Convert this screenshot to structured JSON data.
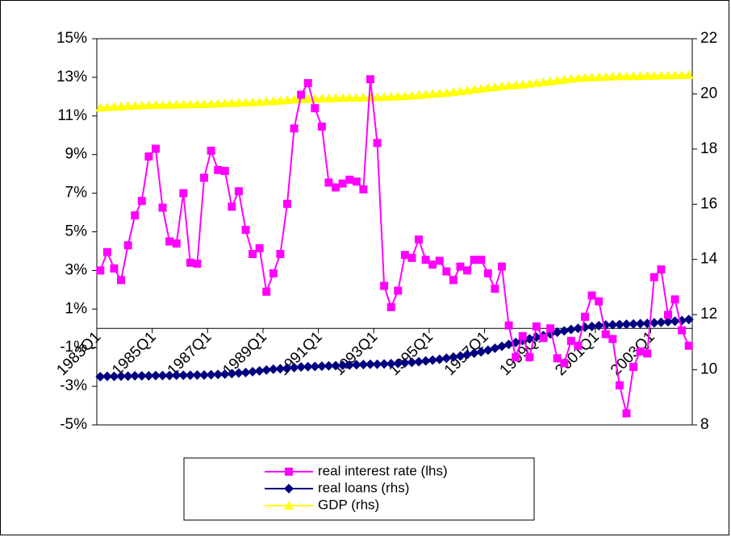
{
  "chart_data": {
    "type": "line",
    "categories": [
      "1983Q1",
      null,
      null,
      null,
      null,
      null,
      null,
      null,
      "1985Q1",
      null,
      null,
      null,
      null,
      null,
      null,
      null,
      "1987Q1",
      null,
      null,
      null,
      null,
      null,
      null,
      null,
      "1989Q1",
      null,
      null,
      null,
      null,
      null,
      null,
      null,
      "1991Q1",
      null,
      null,
      null,
      null,
      null,
      null,
      null,
      "1993Q1",
      null,
      null,
      null,
      null,
      null,
      null,
      null,
      "1995Q1",
      null,
      null,
      null,
      null,
      null,
      null,
      null,
      "1997Q1",
      null,
      null,
      null,
      null,
      null,
      null,
      null,
      "1999Q1",
      null,
      null,
      null,
      null,
      null,
      null,
      null,
      "2001Q1",
      null,
      null,
      null,
      null,
      null,
      null,
      null,
      "2003Q1",
      null,
      null,
      null,
      null,
      null
    ],
    "series": [
      {
        "name": "real interest rate (lhs)",
        "color": "#ff00ff",
        "marker": "square",
        "values": [
          3.0,
          3.95,
          3.1,
          2.5,
          4.3,
          5.85,
          6.6,
          8.9,
          9.3,
          6.25,
          4.5,
          4.4,
          7.0,
          3.4,
          3.35,
          7.8,
          9.2,
          8.2,
          8.15,
          6.3,
          7.1,
          5.1,
          3.85,
          4.15,
          1.9,
          2.85,
          3.85,
          6.45,
          10.35,
          12.1,
          12.7,
          11.4,
          10.45,
          7.55,
          7.3,
          7.5,
          7.7,
          7.6,
          7.2,
          12.9,
          9.6,
          2.2,
          1.1,
          1.95,
          3.8,
          3.65,
          4.6,
          3.55,
          3.3,
          3.5,
          2.95,
          2.5,
          3.2,
          3.0,
          3.55,
          3.55,
          2.85,
          2.05,
          3.2,
          0.15,
          -1.5,
          -0.4,
          -1.5,
          0.1,
          -0.5,
          0.0,
          -1.55,
          -1.8,
          -0.65,
          -0.9,
          0.6,
          1.7,
          1.4,
          -0.3,
          -0.55,
          -2.95,
          -4.4,
          -2.0,
          -1.2,
          -1.3,
          2.65,
          3.05,
          0.7,
          1.5,
          -0.1,
          -0.9
        ]
      },
      {
        "name": "real loans (rhs)",
        "color": "#000080",
        "marker": "diamond",
        "axis": "y2",
        "values": [
          9.75,
          9.76,
          9.76,
          9.77,
          9.77,
          9.78,
          9.78,
          9.78,
          9.79,
          9.79,
          9.79,
          9.8,
          9.8,
          9.8,
          9.81,
          9.81,
          9.82,
          9.83,
          9.84,
          9.86,
          9.88,
          9.9,
          9.93,
          9.96,
          9.99,
          10.02,
          10.04,
          10.06,
          10.08,
          10.1,
          10.11,
          10.12,
          10.13,
          10.14,
          10.15,
          10.16,
          10.17,
          10.18,
          10.19,
          10.2,
          10.2,
          10.21,
          10.22,
          10.23,
          10.25,
          10.27,
          10.29,
          10.32,
          10.35,
          10.38,
          10.42,
          10.46,
          10.5,
          10.55,
          10.6,
          10.65,
          10.71,
          10.78,
          10.85,
          10.92,
          10.99,
          11.06,
          11.12,
          11.18,
          11.24,
          11.3,
          11.36,
          11.41,
          11.46,
          11.5,
          11.54,
          11.57,
          11.6,
          11.62,
          11.63,
          11.64,
          11.65,
          11.66,
          11.67,
          11.68,
          11.7,
          11.72,
          11.74,
          11.76,
          11.78,
          11.82
        ]
      },
      {
        "name": "GDP (rhs)",
        "color": "#ffff00",
        "marker": "triangle",
        "axis": "y2",
        "values": [
          19.5,
          19.52,
          19.53,
          19.55,
          19.56,
          19.57,
          19.58,
          19.59,
          19.6,
          19.6,
          19.61,
          19.61,
          19.62,
          19.62,
          19.63,
          19.63,
          19.64,
          19.65,
          19.66,
          19.67,
          19.68,
          19.69,
          19.7,
          19.71,
          19.73,
          19.74,
          19.76,
          19.78,
          19.8,
          19.81,
          19.82,
          19.83,
          19.84,
          19.84,
          19.85,
          19.85,
          19.86,
          19.86,
          19.87,
          19.87,
          19.88,
          19.89,
          19.9,
          19.91,
          19.92,
          19.94,
          19.96,
          19.98,
          20,
          20.02,
          20.04,
          20.07,
          20.1,
          20.13,
          20.16,
          20.19,
          20.22,
          20.25,
          20.28,
          20.3,
          20.32,
          20.34,
          20.37,
          20.4,
          20.43,
          20.46,
          20.49,
          20.52,
          20.55,
          20.57,
          20.59,
          20.6,
          20.61,
          20.62,
          20.63,
          20.64,
          20.64,
          20.65,
          20.65,
          20.66,
          20.66,
          20.67,
          20.67,
          20.68,
          20.68,
          20.69
        ]
      }
    ],
    "ylim": [
      -5,
      15
    ],
    "yticks": [
      {
        "value": -5,
        "label": "-5%"
      },
      {
        "value": -3,
        "label": "-3%"
      },
      {
        "value": -1,
        "label": "-1%"
      },
      {
        "value": 1,
        "label": "1%"
      },
      {
        "value": 3,
        "label": "3%"
      },
      {
        "value": 5,
        "label": "5%"
      },
      {
        "value": 7,
        "label": "7%"
      },
      {
        "value": 9,
        "label": "9%"
      },
      {
        "value": 11,
        "label": "11%"
      },
      {
        "value": 13,
        "label": "13%"
      },
      {
        "value": 15,
        "label": "15%"
      }
    ],
    "y2lim": [
      8,
      22
    ],
    "y2ticks": [
      8,
      10,
      12,
      14,
      16,
      18,
      20,
      22
    ],
    "legend": "bottom"
  }
}
